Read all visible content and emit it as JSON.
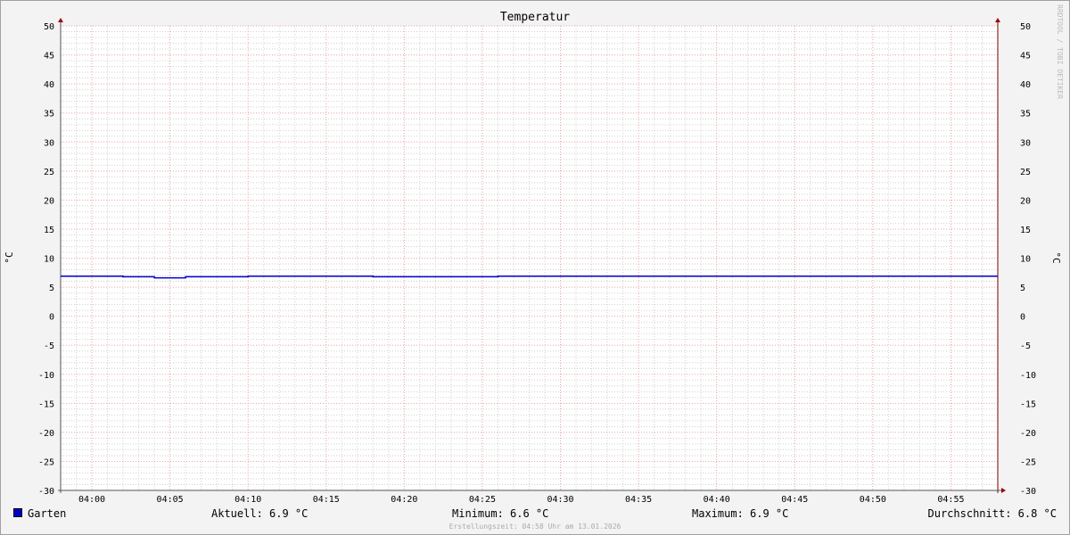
{
  "chart_data": {
    "type": "line",
    "title": "Temperatur",
    "ylabel": "°C",
    "ylim": [
      -30,
      50
    ],
    "yticks": [
      50,
      45,
      40,
      35,
      30,
      25,
      20,
      15,
      10,
      5,
      0,
      -5,
      -10,
      -15,
      -20,
      -25,
      -30
    ],
    "xlim": [
      "03:58",
      "04:58"
    ],
    "xticks": [
      "04:00",
      "04:05",
      "04:10",
      "04:15",
      "04:20",
      "04:25",
      "04:30",
      "04:35",
      "04:40",
      "04:45",
      "04:50",
      "04:55"
    ],
    "grid": true,
    "series": [
      {
        "name": "Garten",
        "color": "#0000cc",
        "points": [
          [
            "03:58",
            6.9
          ],
          [
            "04:02",
            6.8
          ],
          [
            "04:04",
            6.6
          ],
          [
            "04:06",
            6.8
          ],
          [
            "04:10",
            6.9
          ],
          [
            "04:18",
            6.8
          ],
          [
            "04:26",
            6.9
          ],
          [
            "04:58",
            6.9
          ]
        ]
      }
    ],
    "watermark": "RRDTOOL / TOBI OETIKER"
  },
  "legend": {
    "series": "Garten",
    "current": "Aktuell: 6.9 °C",
    "minimum": "Minimum: 6.6 °C",
    "maximum": "Maximum: 6.9 °C",
    "average": "Durchschnitt: 6.8 °C",
    "created": "Erstellungszeit: 04:58 Uhr am 13.01.2026"
  }
}
